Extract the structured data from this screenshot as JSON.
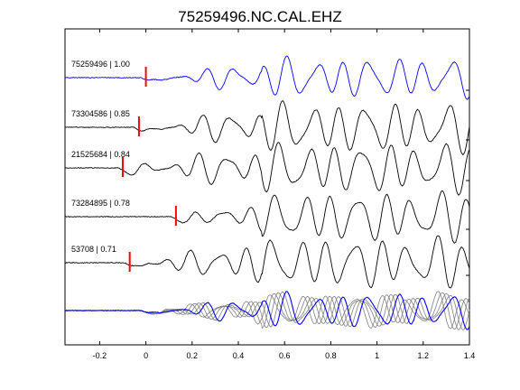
{
  "chart_data": {
    "type": "line",
    "title": "75259496.NC.CAL.EHZ",
    "xlabel": "",
    "ylabel": "",
    "xlim": [
      -0.35,
      1.4
    ],
    "x_ticks": [
      -0.2,
      0,
      0.2,
      0.4,
      0.6,
      0.8,
      1,
      1.2,
      1.4
    ],
    "x_tick_labels": [
      "-0.2",
      "0",
      "0.2",
      "0.4",
      "0.6",
      "0.8",
      "1",
      "1.2",
      "1.4"
    ],
    "grid": false,
    "colors": {
      "primary": "#0000ff",
      "secondary": "#000000",
      "pick": "#ff0000",
      "overlay": "#808080"
    },
    "series": [
      {
        "name": "75259496 | 1.00",
        "pick_time": 0.0,
        "color": "#0000ff"
      },
      {
        "name": "73304586 | 0.85",
        "pick_time": -0.03,
        "color": "#000000"
      },
      {
        "name": "21525684 | 0.84",
        "pick_time": -0.1,
        "color": "#000000"
      },
      {
        "name": "73284895 | 0.78",
        "pick_time": 0.13,
        "color": "#000000"
      },
      {
        "name": "53708 | 0.71",
        "pick_time": -0.07,
        "color": "#000000"
      }
    ],
    "stacked_overlay": true
  }
}
